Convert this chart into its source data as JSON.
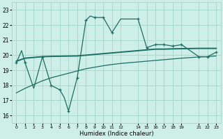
{
  "bg_color": "#ceeee8",
  "grid_color": "#a8d8d0",
  "line_color": "#1a6e64",
  "xlabel": "Humidex (Indice chaleur)",
  "xlim": [
    -0.5,
    23.5
  ],
  "ylim": [
    15.5,
    23.5
  ],
  "yticks": [
    16,
    17,
    18,
    19,
    20,
    21,
    22,
    23
  ],
  "xtick_positions": [
    0,
    1,
    2,
    3,
    4,
    5,
    6,
    7,
    8,
    9,
    10,
    11,
    12,
    14,
    15,
    16,
    17,
    18,
    19,
    21,
    22,
    23
  ],
  "xtick_labels": [
    "0",
    "1",
    "2",
    "3",
    "4",
    "5",
    "6",
    "7",
    "8",
    "9",
    "10",
    "11",
    "12",
    "14",
    "15",
    "16",
    "17",
    "18",
    "19",
    "21",
    "22",
    "23"
  ],
  "curve1_x": [
    0,
    0.6,
    1.0,
    2.0,
    3.0,
    4.0,
    5.0,
    5.5,
    6.0,
    7.0,
    8.0,
    8.5,
    9.0,
    10.0,
    11.0,
    12.0,
    12.5,
    14.0,
    15.0,
    16.0,
    17.0,
    18.0,
    19.0,
    21.0,
    22.0,
    23.0
  ],
  "curve1_y": [
    19.5,
    20.3,
    19.5,
    17.8,
    19.9,
    18.0,
    17.7,
    17.2,
    16.3,
    18.5,
    22.3,
    22.6,
    22.5,
    22.5,
    21.5,
    22.4,
    22.4,
    22.4,
    20.5,
    20.7,
    20.7,
    20.6,
    20.7,
    19.9,
    19.9,
    20.2
  ],
  "curve1_marker_x": [
    0,
    1,
    3,
    4,
    5,
    6,
    7,
    8,
    9,
    10,
    11,
    14,
    15,
    16,
    17,
    18,
    19,
    21,
    22,
    23
  ],
  "curve1_marker_y": [
    19.5,
    19.5,
    19.9,
    18.0,
    17.7,
    16.3,
    18.5,
    22.3,
    22.5,
    22.5,
    21.5,
    22.4,
    20.5,
    20.7,
    20.7,
    20.6,
    20.7,
    19.9,
    19.9,
    20.2
  ],
  "curve2_x": [
    0,
    1,
    2,
    3,
    4,
    5,
    6,
    7,
    8,
    9,
    10,
    11,
    12,
    14,
    15,
    16,
    17,
    18,
    19,
    21,
    22,
    23
  ],
  "curve2_y": [
    19.6,
    19.8,
    19.85,
    19.9,
    19.92,
    19.93,
    19.94,
    19.95,
    20.0,
    20.05,
    20.1,
    20.15,
    20.2,
    20.3,
    20.35,
    20.4,
    20.4,
    20.42,
    20.43,
    20.45,
    20.45,
    20.45
  ],
  "curve3_x": [
    0,
    1,
    2,
    3,
    4,
    5,
    6,
    7,
    8,
    9,
    10,
    11,
    12,
    14,
    15,
    16,
    17,
    18,
    19,
    21,
    22,
    23
  ],
  "curve3_y": [
    17.5,
    17.8,
    18.05,
    18.3,
    18.5,
    18.65,
    18.8,
    18.95,
    19.1,
    19.2,
    19.3,
    19.38,
    19.45,
    19.55,
    19.6,
    19.65,
    19.7,
    19.75,
    19.8,
    19.88,
    19.9,
    19.95
  ]
}
